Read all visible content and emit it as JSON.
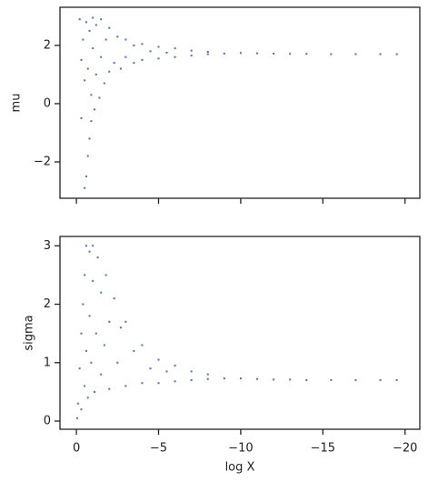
{
  "chart_data": [
    {
      "type": "scatter",
      "ylabel": "mu",
      "color": "#4c72b0",
      "xlim": [
        1,
        -20.9
      ],
      "ylim": [
        -3.25,
        3.31
      ],
      "xticks": [
        0,
        -5,
        -10,
        -15,
        -20
      ],
      "yticks": [
        {
          "value": -2,
          "label": "−2"
        },
        0,
        2
      ],
      "x": [
        -0.2,
        -0.3,
        -0.3,
        -0.4,
        -0.5,
        -0.5,
        -0.6,
        -0.6,
        -0.7,
        -0.7,
        -0.8,
        -0.8,
        -0.9,
        -0.9,
        -1.0,
        -1.0,
        -1.1,
        -1.2,
        -1.2,
        -1.4,
        -1.5,
        -1.5,
        -1.7,
        -1.8,
        -2.0,
        -2.0,
        -2.3,
        -2.5,
        -2.7,
        -3.0,
        -3.0,
        -3.5,
        -3.5,
        -4.0,
        -4.0,
        -4.5,
        -5.0,
        -5.0,
        -5.5,
        -6.0,
        -6.0,
        -7.0,
        -7.0,
        -8.0,
        -8.0,
        -9.0,
        -10.0,
        -11.0,
        -12.0,
        -13.0,
        -14.0,
        -15.5,
        -17.0,
        -18.5,
        -19.5
      ],
      "y": [
        2.9,
        1.5,
        -0.5,
        2.2,
        -2.9,
        0.8,
        -2.5,
        2.8,
        -1.8,
        1.2,
        -1.2,
        2.5,
        -0.6,
        0.3,
        1.9,
        2.95,
        -0.2,
        1.0,
        2.7,
        0.2,
        1.6,
        2.9,
        0.7,
        2.2,
        1.1,
        2.6,
        1.4,
        2.3,
        1.2,
        2.2,
        1.6,
        1.4,
        2.0,
        1.5,
        2.05,
        1.8,
        1.55,
        1.95,
        1.75,
        1.6,
        1.9,
        1.65,
        1.82,
        1.7,
        1.78,
        1.72,
        1.74,
        1.73,
        1.72,
        1.71,
        1.71,
        1.7,
        1.7,
        1.7,
        1.7
      ]
    },
    {
      "type": "scatter",
      "xlabel": "log X",
      "ylabel": "sigma",
      "color": "#4c72b0",
      "xlim": [
        1,
        -20.9
      ],
      "ylim": [
        -0.14,
        3.16
      ],
      "xticks": [
        0,
        {
          "value": -5,
          "label": "−5"
        },
        {
          "value": -10,
          "label": "−10"
        },
        {
          "value": -15,
          "label": "−15"
        },
        {
          "value": -20,
          "label": "−20"
        }
      ],
      "yticks": [
        0,
        1,
        2,
        3
      ],
      "x": [
        -0.05,
        -0.1,
        -0.2,
        -0.3,
        -0.3,
        -0.4,
        -0.5,
        -0.5,
        -0.6,
        -0.6,
        -0.7,
        -0.8,
        -0.8,
        -0.9,
        -1.0,
        -1.0,
        -1.1,
        -1.2,
        -1.3,
        -1.5,
        -1.5,
        -1.7,
        -1.8,
        -2.0,
        -2.0,
        -2.3,
        -2.5,
        -2.7,
        -3.0,
        -3.0,
        -3.5,
        -4.0,
        -4.0,
        -4.5,
        -5.0,
        -5.0,
        -5.5,
        -6.0,
        -6.0,
        -7.0,
        -7.0,
        -8.0,
        -8.0,
        -9.0,
        -10.0,
        -11.0,
        -12.0,
        -13.0,
        -14.0,
        -15.5,
        -17.0,
        -18.5,
        -19.5
      ],
      "y": [
        0.05,
        0.3,
        0.9,
        1.5,
        0.2,
        2.0,
        0.6,
        2.5,
        1.2,
        3.0,
        0.4,
        1.8,
        2.9,
        1.0,
        2.4,
        3.0,
        0.5,
        1.5,
        2.8,
        0.8,
        2.2,
        1.3,
        2.5,
        0.55,
        1.7,
        2.1,
        1.0,
        1.6,
        0.6,
        1.7,
        1.2,
        0.65,
        1.3,
        0.9,
        0.65,
        1.05,
        0.85,
        0.68,
        0.95,
        0.7,
        0.85,
        0.72,
        0.8,
        0.73,
        0.73,
        0.72,
        0.71,
        0.71,
        0.7,
        0.7,
        0.7,
        0.7,
        0.7
      ]
    }
  ]
}
